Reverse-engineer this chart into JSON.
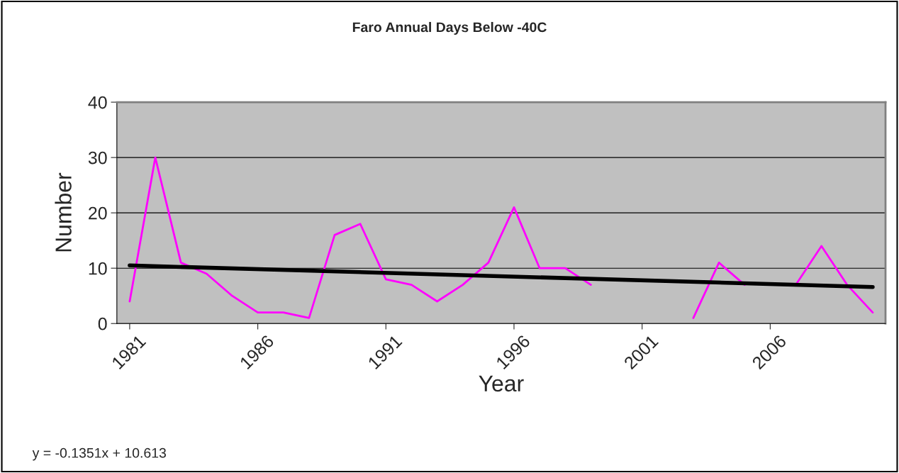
{
  "chart_data": {
    "type": "line",
    "title": "Faro Annual Days Below -40C",
    "xlabel": "Year",
    "ylabel": "Number",
    "xlim": [
      1980.5,
      2010.5
    ],
    "xticks": [
      1981,
      1986,
      1991,
      1996,
      2001,
      2006
    ],
    "ylim": [
      0,
      40
    ],
    "yticks": [
      0,
      10,
      20,
      30,
      40
    ],
    "grid": "y",
    "marker": "none",
    "line_style": "solid",
    "series": [
      {
        "color": "#ff00ff",
        "x": [
          1981,
          1982,
          1983,
          1984,
          1985,
          1986,
          1987,
          1988,
          1989,
          1990,
          1991,
          1992,
          1993,
          1994,
          1995,
          1996,
          1997,
          1998,
          1999,
          2000,
          2001,
          2002,
          2003,
          2004,
          2005,
          2006,
          2007,
          2008,
          2009,
          2010
        ],
        "values": [
          4,
          30,
          11,
          9,
          5,
          2,
          2,
          1,
          16,
          18,
          8,
          7,
          4,
          7,
          11,
          21,
          10,
          10,
          7,
          null,
          null,
          null,
          1,
          11,
          7,
          null,
          7,
          14,
          7,
          2
        ]
      },
      {
        "color": "#000000",
        "x": [
          1981,
          2010
        ],
        "values": [
          10.5,
          6.6
        ]
      }
    ],
    "annotations": [
      "y = -0.1351x + 10.613"
    ]
  }
}
